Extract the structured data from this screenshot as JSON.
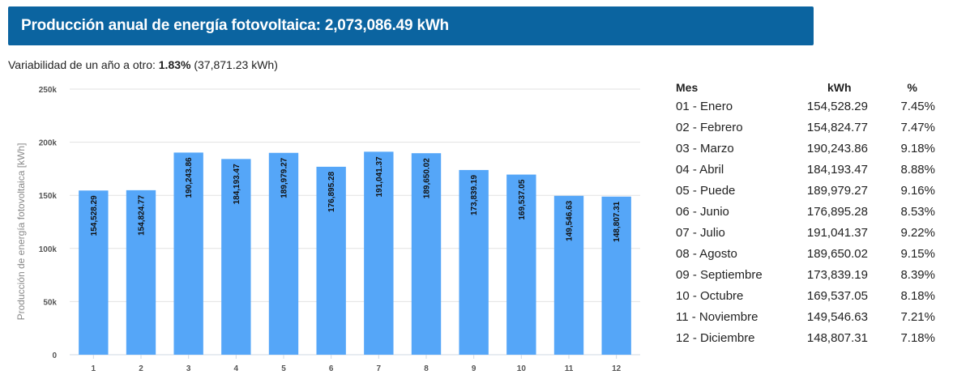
{
  "header": {
    "title": "Producción anual de energía fotovoltaica: 2,073,086.49 kWh",
    "color": "#0b64a0"
  },
  "variability": {
    "label": "Variabilidad de un año a otro: ",
    "percent": "1.83%",
    "absolute": " (37,871.23 kWh)"
  },
  "chart_data": {
    "type": "bar",
    "categories": [
      "1",
      "2",
      "3",
      "4",
      "5",
      "6",
      "7",
      "8",
      "9",
      "10",
      "11",
      "12"
    ],
    "values": [
      154528.29,
      154824.77,
      190243.86,
      184193.47,
      189979.27,
      176895.28,
      191041.37,
      189650.02,
      173839.19,
      169537.05,
      149546.63,
      148807.31
    ],
    "value_labels": [
      "154,528.29",
      "154,824.77",
      "190,243.86",
      "184,193.47",
      "189,979.27",
      "176,895.28",
      "191,041.37",
      "189,650.02",
      "173,839.19",
      "169,537.05",
      "149,546.63",
      "148,807.31"
    ],
    "ylabel": "Producción de energía fotovoltaica [kWh]",
    "ylim": [
      0,
      250000
    ],
    "yticks": [
      0,
      50000,
      100000,
      150000,
      200000,
      250000
    ],
    "ytick_labels": [
      "0",
      "50k",
      "100k",
      "150k",
      "200k",
      "250k"
    ],
    "grid": true,
    "bar_color": "#55a6f8"
  },
  "table": {
    "headers": [
      "Mes",
      "kWh",
      "%"
    ],
    "rows": [
      [
        "01 - Enero",
        "154,528.29",
        "7.45%"
      ],
      [
        "02 - Febrero",
        "154,824.77",
        "7.47%"
      ],
      [
        "03 - Marzo",
        "190,243.86",
        "9.18%"
      ],
      [
        "04 - Abril",
        "184,193.47",
        "8.88%"
      ],
      [
        "05 - Puede",
        "189,979.27",
        "9.16%"
      ],
      [
        "06 - Junio",
        "176,895.28",
        "8.53%"
      ],
      [
        "07 - Julio",
        "191,041.37",
        "9.22%"
      ],
      [
        "08 - Agosto",
        "189,650.02",
        "9.15%"
      ],
      [
        "09 - Septiembre",
        "173,839.19",
        "8.39%"
      ],
      [
        "10 - Octubre",
        "169,537.05",
        "8.18%"
      ],
      [
        "11 - Noviembre",
        "149,546.63",
        "7.21%"
      ],
      [
        "12 - Diciembre",
        "148,807.31",
        "7.18%"
      ]
    ]
  }
}
